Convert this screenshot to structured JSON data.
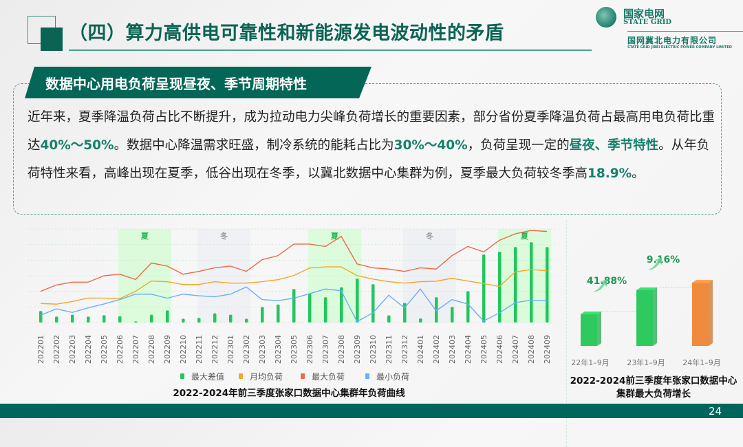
{
  "header": {
    "title": "（四）算力高供电可靠性和新能源发电波动性的矛盾",
    "logo": {
      "cn": "国家电网",
      "en": "STATE GRID",
      "company": "国网冀北电力有限公司",
      "company_en": "STATE GRID JIBEI ELECTRIC POWER COMPANY LIMITED"
    }
  },
  "section": {
    "tag": "数据中心用电负荷呈现昼夜、季节周期特性",
    "paragraph": [
      {
        "t": "近年来，夏季降温负荷占比不断提升，成为拉动电力尖峰负荷增长的重要因素，部分省份夏季降温负荷占最高用电负荷比重达",
        "hl": false
      },
      {
        "t": "40%～50%",
        "hl": true
      },
      {
        "t": "。数据中心降温需求旺盛，制冷系统的能耗占比为",
        "hl": false
      },
      {
        "t": "30%～40%",
        "hl": true
      },
      {
        "t": "，负荷呈现一定的",
        "hl": false
      },
      {
        "t": "昼夜、季节特性",
        "hl": true
      },
      {
        "t": "。从年负荷特性来看，高峰出现在夏季，低谷出现在冬季，以冀北数据中心集群为例，夏季最大负荷较冬季高",
        "hl": false
      },
      {
        "t": "18.9%",
        "hl": true
      },
      {
        "t": "。",
        "hl": false
      }
    ]
  },
  "colors": {
    "brand": "#00655a",
    "highlight": "#17806d",
    "max_diff": "#22c55e",
    "avg": "#f5a623",
    "max": "#ee6a45",
    "min": "#6aaeff",
    "summer_band": "#d8fcd8",
    "winter_band": "#eef0f3"
  },
  "chart_data": [
    {
      "type": "bar+line",
      "title": "2022-2024年前三季度张家口数据中心集群年负荷曲线",
      "categories": [
        "202201",
        "202202",
        "202203",
        "202204",
        "202205",
        "202206",
        "202207",
        "202208",
        "202209",
        "202210",
        "202211",
        "202212",
        "202301",
        "202302",
        "202303",
        "202304",
        "202305",
        "202306",
        "202307",
        "202308",
        "202309",
        "202310",
        "202311",
        "202312",
        "202401",
        "202402",
        "202403",
        "202404",
        "202405",
        "202406",
        "202407",
        "202408",
        "202409"
      ],
      "ylim": [
        0,
        6
      ],
      "grid": true,
      "legend_placement": "bottom",
      "season_bands": [
        {
          "label": "夏",
          "from": "202206",
          "to": "202209",
          "kind": "summer"
        },
        {
          "label": "冬",
          "from": "202211",
          "to": "202302",
          "kind": "winter"
        },
        {
          "label": "夏",
          "from": "202306",
          "to": "202309",
          "kind": "summer"
        },
        {
          "label": "冬",
          "from": "202312",
          "to": "202403",
          "kind": "winter"
        },
        {
          "label": "夏",
          "from": "202406",
          "to": "202409",
          "kind": "summer"
        }
      ],
      "series": [
        {
          "name": "最大差值",
          "kind": "bar",
          "color": "#22c55e",
          "values": [
            0.74,
            0.38,
            0.5,
            0.38,
            0.47,
            0.4,
            0.07,
            0.5,
            0.78,
            0.24,
            0.29,
            0.59,
            0.5,
            0.24,
            1.0,
            1.16,
            2.15,
            1.85,
            1.62,
            2.26,
            2.82,
            2.46,
            0.46,
            1.26,
            0.26,
            1.62,
            1.0,
            2.01,
            4.37,
            4.54,
            4.84,
            5.15,
            4.84
          ]
        },
        {
          "name": "月均负荷",
          "kind": "line",
          "color": "#f5a623",
          "values": [
            1.22,
            1.18,
            1.35,
            1.57,
            1.57,
            1.53,
            2.0,
            2.66,
            2.62,
            2.44,
            2.44,
            2.62,
            2.53,
            2.53,
            2.62,
            2.75,
            3.01,
            3.5,
            3.57,
            3.57,
            3.01,
            2.79,
            2.62,
            2.53,
            2.62,
            2.65,
            2.84,
            2.66,
            2.5,
            2.31,
            3.25,
            3.4,
            3.32
          ]
        },
        {
          "name": "最大负荷",
          "kind": "line",
          "color": "#ee6a45",
          "values": [
            2.0,
            2.41,
            2.59,
            2.59,
            3.0,
            3.1,
            2.76,
            3.82,
            3.62,
            3.1,
            3.28,
            3.51,
            3.62,
            3.28,
            4.03,
            4.29,
            5.03,
            5.03,
            4.88,
            5.53,
            3.76,
            3.51,
            3.43,
            3.28,
            3.51,
            3.43,
            4.29,
            4.88,
            4.53,
            5.28,
            5.69,
            5.91,
            5.84
          ]
        },
        {
          "name": "最小负荷",
          "kind": "line",
          "color": "#6aaeff",
          "values": [
            0.47,
            0.88,
            0.65,
            0.94,
            1.19,
            1.47,
            1.82,
            1.82,
            1.56,
            1.82,
            1.72,
            1.65,
            1.82,
            2.28,
            1.47,
            1.41,
            1.56,
            1.85,
            2.15,
            2.04,
            0.06,
            0.62,
            1.75,
            0.94,
            2.15,
            0.75,
            1.47,
            1.19,
            0.1,
            0.62,
            1.28,
            1.43,
            1.4
          ]
        }
      ]
    },
    {
      "type": "bar",
      "title": "2022-2024前三季度年张家口数据中心集群最大负荷增长",
      "categories": [
        "22年1–9月",
        "23年1–9月",
        "24年1–9月"
      ],
      "values": [
        100,
        141.88,
        154.88
      ],
      "bar_colors": [
        "#2ec95f",
        "#2ec95f",
        "#f08a3c"
      ],
      "annotations": [
        "41.88%",
        "9.16%"
      ]
    }
  ],
  "footer": {
    "page": "24"
  }
}
